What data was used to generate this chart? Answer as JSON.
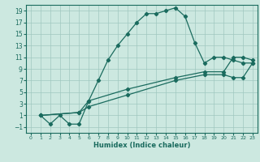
{
  "xlabel": "Humidex (Indice chaleur)",
  "background_color": "#cce8e0",
  "grid_color": "#aaccC4",
  "line_color": "#1a6b5e",
  "xlim": [
    -0.5,
    23.5
  ],
  "ylim": [
    -2,
    20
  ],
  "xticks": [
    0,
    1,
    2,
    3,
    4,
    5,
    6,
    7,
    8,
    9,
    10,
    11,
    12,
    13,
    14,
    15,
    16,
    17,
    18,
    19,
    20,
    21,
    22,
    23
  ],
  "yticks": [
    -1,
    1,
    3,
    5,
    7,
    9,
    11,
    13,
    15,
    17,
    19
  ],
  "curve1_x": [
    1,
    2,
    3,
    4,
    5,
    6,
    7,
    8,
    9,
    10,
    11,
    12,
    13,
    14,
    15,
    16,
    17,
    18,
    19,
    20,
    21,
    22,
    23
  ],
  "curve1_y": [
    1,
    -0.5,
    1,
    -0.5,
    -0.5,
    3.5,
    7,
    10.5,
    13,
    15,
    17,
    18.5,
    18.5,
    19,
    19.5,
    18,
    13.5,
    10,
    11,
    11,
    10.5,
    10,
    10
  ],
  "curve2_x": [
    1,
    5,
    6,
    10,
    15,
    18,
    20,
    21,
    22,
    23
  ],
  "curve2_y": [
    1,
    1.5,
    3.5,
    5.5,
    7.5,
    8.5,
    8.5,
    11,
    11,
    10.5
  ],
  "curve3_x": [
    1,
    5,
    6,
    10,
    15,
    18,
    20,
    21,
    22,
    23
  ],
  "curve3_y": [
    1,
    1.5,
    2.5,
    4.5,
    7,
    8,
    8,
    7.5,
    7.5,
    10
  ]
}
